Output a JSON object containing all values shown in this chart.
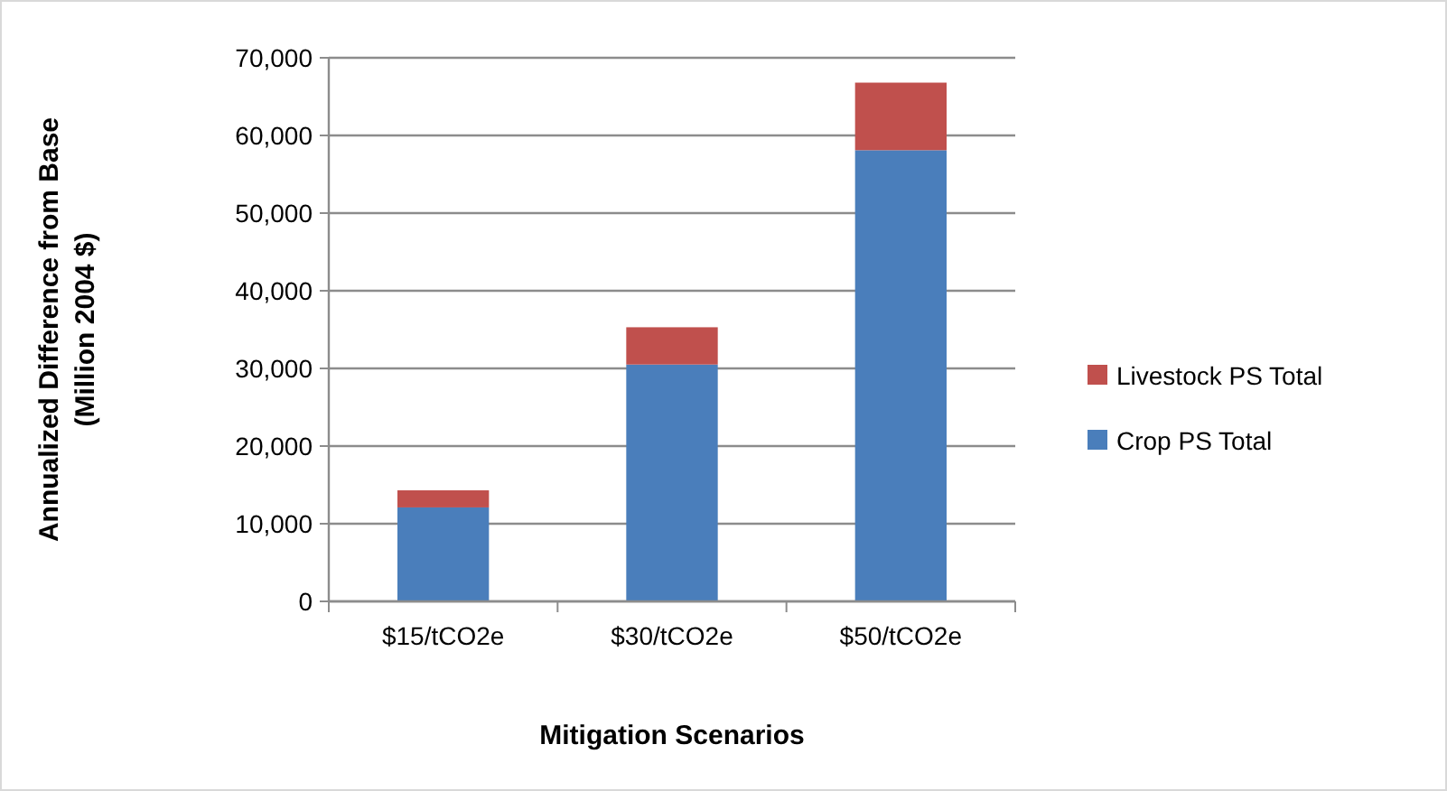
{
  "chart_data": {
    "type": "bar",
    "stacked": true,
    "xlabel": "Mitigation Scenarios",
    "ylabel": "Annualized Difference from Base (Million 2004 $)",
    "categories": [
      "$15/tCO2e",
      "$30/tCO2e",
      "$50/tCO2e"
    ],
    "series": [
      {
        "name": "Crop PS Total",
        "color": "#4a7ebb",
        "values": [
          12100,
          30500,
          58100
        ]
      },
      {
        "name": "Livestock PS Total",
        "color": "#c0504d",
        "values": [
          2200,
          4800,
          8700
        ]
      }
    ],
    "ylim": [
      0,
      70000
    ],
    "yticks": [
      {
        "value": 0,
        "label": "0"
      },
      {
        "value": 10000,
        "label": "10,000"
      },
      {
        "value": 20000,
        "label": "20,000"
      },
      {
        "value": 30000,
        "label": "30,000"
      },
      {
        "value": 40000,
        "label": "40,000"
      },
      {
        "value": 50000,
        "label": "50,000"
      },
      {
        "value": 60000,
        "label": "60,000"
      },
      {
        "value": 70000,
        "label": "70,000"
      }
    ],
    "grid": "y",
    "legend": "right"
  }
}
